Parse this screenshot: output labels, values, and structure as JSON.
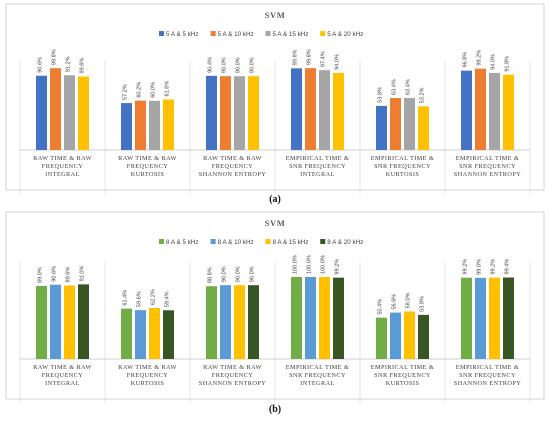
{
  "chart_data": [
    {
      "type": "bar",
      "title": "SVM",
      "caption": "(a)",
      "legend_position": "top-right",
      "grid": false,
      "ylim": [
        0,
        100
      ],
      "categories": [
        [
          "RAW TIME & RAW",
          "FREQUENCY",
          "INTEGRAL"
        ],
        [
          "RAW TIME & RAW",
          "FREQUENCY",
          "KURTOSIS"
        ],
        [
          "RAW TIME & RAW",
          "FREQUENCY",
          "SHANNON ENTROPY"
        ],
        [
          "EMPIRICAL TIME &",
          "SNR FREQUENCY",
          "INTEGRAL"
        ],
        [
          "EMPIRICAL TIME &",
          "SNR FREQUENCY",
          "KURTOSIS"
        ],
        [
          "EMPIRICAL TIME &",
          "SNR FREQUENCY",
          "SHANNON ENTROPY"
        ]
      ],
      "series": [
        {
          "name": "5 A & 5 kHz",
          "color": "#4472c4",
          "values": [
            90.6,
            57.2,
            90.4,
            99.6,
            53.8,
            96.8
          ],
          "labels": [
            "90.6%",
            "57.2%",
            "90.4%",
            "99.6%",
            "53.8%",
            "96.8%"
          ]
        },
        {
          "name": "5 A & 10 kHz",
          "color": "#ed7d31",
          "values": [
            99.8,
            60.2,
            90.0,
            99.8,
            63.4,
            99.2
          ],
          "labels": [
            "99.8%",
            "60.2%",
            "90.0%",
            "99.8%",
            "63.4%",
            "99.2%"
          ]
        },
        {
          "name": "5 A & 15 kHz",
          "color": "#a5a5a5",
          "values": [
            91.2,
            60.0,
            90.0,
            97.4,
            63.4,
            94.0
          ],
          "labels": [
            "91.2%",
            "60.0%",
            "90.0%",
            "97.4%",
            "63.4%",
            "94.0%"
          ]
        },
        {
          "name": "5 A & 20 kHz",
          "color": "#ffc000",
          "values": [
            89.6,
            61.6,
            90.0,
            94.0,
            53.2,
            91.8
          ],
          "labels": [
            "89.6%",
            "61.6%",
            "90.0%",
            "94.0%",
            "53.2%",
            "91.8%"
          ]
        }
      ]
    },
    {
      "type": "bar",
      "title": "SVM",
      "caption": "(b)",
      "legend_position": "top-right",
      "grid": false,
      "ylim": [
        0,
        100
      ],
      "categories": [
        [
          "RAW TIME & RAW",
          "FREQUENCY",
          "INTEGRAL"
        ],
        [
          "RAW TIME & RAW",
          "FREQUENCY",
          "KURTOSIS"
        ],
        [
          "RAW TIME & RAW",
          "FREQUENCY",
          "SHANNON ENTROPY"
        ],
        [
          "EMPIRICAL TIME &",
          "SNR FREQUENCY",
          "INTEGRAL"
        ],
        [
          "EMPIRICAL TIME &",
          "SNR FREQUENCY",
          "KURTOSIS"
        ],
        [
          "EMPIRICAL TIME &",
          "SNR FREQUENCY",
          "SHANNON ENTROPY"
        ]
      ],
      "series": [
        {
          "name": "8 A & 5 kHz",
          "color": "#70ad47",
          "values": [
            89.0,
            61.4,
            88.8,
            100.0,
            50.4,
            99.2
          ],
          "labels": [
            "89.0%",
            "61.4%",
            "88.8%",
            "100.0%",
            "50.4%",
            "99.2%"
          ]
        },
        {
          "name": "8 A & 10 kHz",
          "color": "#5b9bd5",
          "values": [
            90.6,
            59.6,
            90.0,
            100.0,
            56.6,
            99.0
          ],
          "labels": [
            "90.6%",
            "59.6%",
            "90.0%",
            "100.0%",
            "56.6%",
            "99.0%"
          ]
        },
        {
          "name": "8 A & 15 kHz",
          "color": "#ffc000",
          "values": [
            89.6,
            62.2,
            90.0,
            100.0,
            58.0,
            99.2
          ],
          "labels": [
            "89.6%",
            "62.2%",
            "90.0%",
            "100.0%",
            "58.0%",
            "99.2%"
          ]
        },
        {
          "name": "8 A & 20 kHz",
          "color": "#375623",
          "values": [
            91.0,
            59.4,
            90.0,
            99.2,
            53.8,
            99.4
          ],
          "labels": [
            "91.0%",
            "59.4%",
            "90.0%",
            "99.2%",
            "53.8%",
            "99.4%"
          ]
        }
      ]
    }
  ]
}
